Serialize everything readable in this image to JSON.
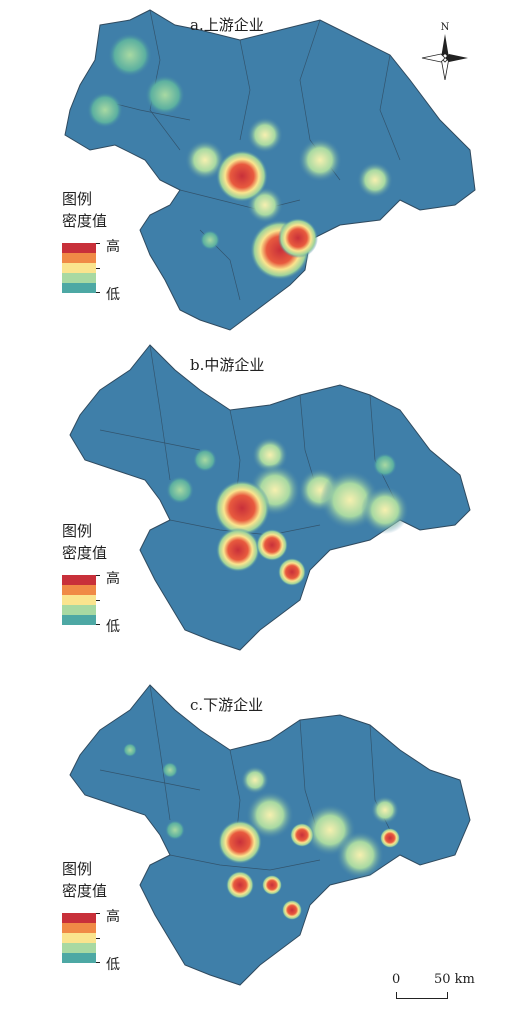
{
  "panels": [
    {
      "title": "a.上游企业"
    },
    {
      "title": "b.中游企业"
    },
    {
      "title": "c.下游企业"
    }
  ],
  "legend": {
    "title": "图例",
    "label": "密度值",
    "high": "高",
    "low": "低"
  },
  "north": "N",
  "scale": {
    "zero": "0",
    "value": "50 km"
  },
  "colors": {
    "base": "#3f7fa9",
    "ramp": [
      "#c8303a",
      "#f08a46",
      "#fae48e",
      "#a8d9a2",
      "#4da8a4"
    ],
    "border": "#2f4a5f"
  }
}
